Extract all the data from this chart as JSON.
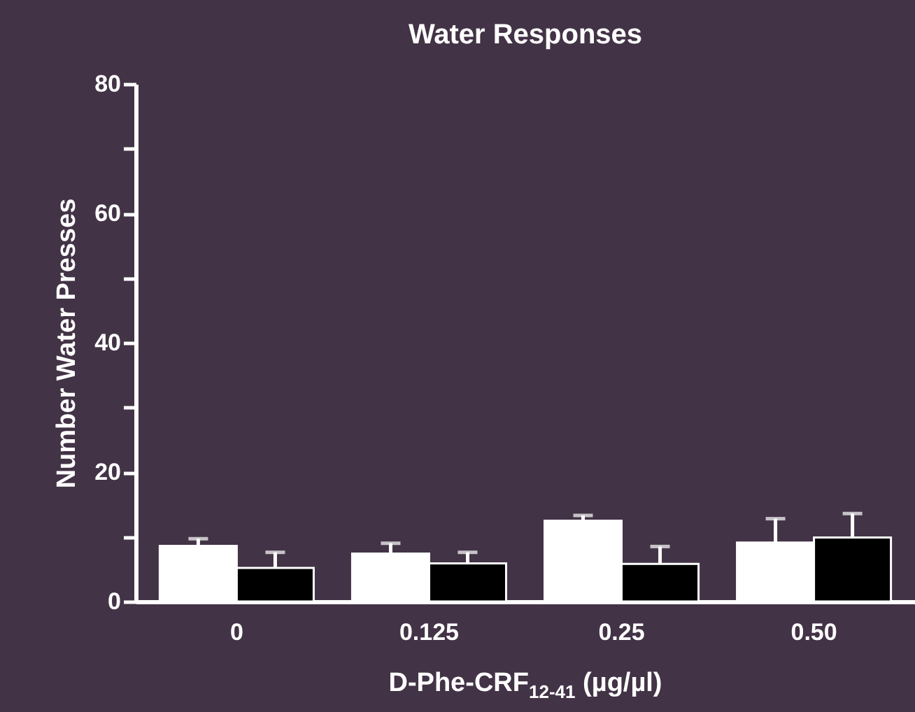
{
  "chart_data": {
    "type": "bar",
    "title": "Water Responses",
    "xlabel": "D-Phe-CRF$_{12-41}$ (µg/µl)",
    "ylabel": "Number Water Presses",
    "categories": [
      "0",
      "0.125",
      "0.25",
      "0.50"
    ],
    "series": [
      {
        "color": "#ffffff",
        "values": [
          8.6,
          7.4,
          12.5,
          9.1
        ],
        "errors": [
          [
            8.6,
            9.7
          ],
          [
            7.4,
            9.0
          ],
          [
            12.5,
            13.3
          ],
          [
            9.1,
            12.8
          ]
        ]
      },
      {
        "color": "#000000",
        "values": [
          5.2,
          5.9,
          5.8,
          9.9
        ],
        "errors": [
          [
            5.2,
            7.6
          ],
          [
            5.9,
            7.6
          ],
          [
            5.8,
            8.5
          ],
          [
            9.9,
            13.6
          ]
        ]
      }
    ],
    "ylim": [
      0,
      80
    ],
    "yticks": [
      0,
      {
        "value": 10,
        "label": null
      },
      20,
      {
        "value": 30,
        "label": null
      },
      40,
      {
        "value": 50,
        "label": null
      },
      60,
      {
        "value": 70,
        "label": null
      },
      80
    ],
    "grid": false,
    "legend": false
  }
}
